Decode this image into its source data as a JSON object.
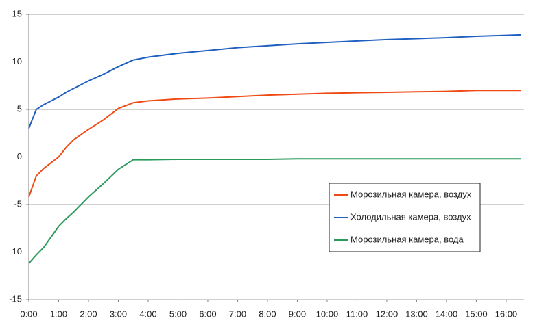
{
  "chart_data": {
    "type": "line",
    "x": [
      0,
      0.25,
      0.5,
      0.75,
      1,
      1.25,
      1.5,
      2,
      2.5,
      3,
      3.5,
      4,
      5,
      6,
      7,
      8,
      9,
      10,
      11,
      12,
      13,
      14,
      15,
      16,
      16.5
    ],
    "series": [
      {
        "name": "Морозильная камера, воздух",
        "color": "#f04a14",
        "values": [
          -4.2,
          -2.0,
          -1.2,
          -0.6,
          0.0,
          1.0,
          1.8,
          2.9,
          3.9,
          5.1,
          5.7,
          5.9,
          6.1,
          6.2,
          6.35,
          6.5,
          6.6,
          6.7,
          6.75,
          6.8,
          6.85,
          6.9,
          7.0,
          7.0,
          7.0
        ]
      },
      {
        "name": "Холодильная камера, воздух",
        "color": "#1f5fc0",
        "values": [
          3.0,
          5.0,
          5.5,
          5.9,
          6.3,
          6.8,
          7.2,
          8.0,
          8.7,
          9.5,
          10.2,
          10.5,
          10.9,
          11.2,
          11.5,
          11.7,
          11.9,
          12.05,
          12.2,
          12.35,
          12.45,
          12.55,
          12.7,
          12.8,
          12.85
        ]
      },
      {
        "name": "Морозильная камера, вода",
        "color": "#2a9a5a",
        "values": [
          -11.2,
          -10.3,
          -9.5,
          -8.4,
          -7.3,
          -6.5,
          -5.8,
          -4.2,
          -2.8,
          -1.3,
          -0.3,
          -0.3,
          -0.25,
          -0.25,
          -0.25,
          -0.25,
          -0.2,
          -0.2,
          -0.2,
          -0.2,
          -0.2,
          -0.2,
          -0.2,
          -0.2,
          -0.2
        ]
      }
    ],
    "xlim": [
      0,
      16.6
    ],
    "xticks": [
      {
        "value": 0,
        "label": "0:00"
      },
      {
        "value": 1,
        "label": "1:00"
      },
      {
        "value": 2,
        "label": "2:00"
      },
      {
        "value": 3,
        "label": "3:00"
      },
      {
        "value": 4,
        "label": "4:00"
      },
      {
        "value": 5,
        "label": "5:00"
      },
      {
        "value": 6,
        "label": "6:00"
      },
      {
        "value": 7,
        "label": "7:00"
      },
      {
        "value": 8,
        "label": "8:00"
      },
      {
        "value": 9,
        "label": "9:00"
      },
      {
        "value": 10,
        "label": "10:00"
      },
      {
        "value": 11,
        "label": "11:00"
      },
      {
        "value": 12,
        "label": "12:00"
      },
      {
        "value": 13,
        "label": "13:00"
      },
      {
        "value": 14,
        "label": "14:00"
      },
      {
        "value": 15,
        "label": "15:00"
      },
      {
        "value": 16,
        "label": "16:00"
      }
    ],
    "ylim": [
      -15,
      15
    ],
    "yticks": [
      -15,
      -10,
      -5,
      0,
      5,
      10,
      15
    ],
    "grid": true
  }
}
